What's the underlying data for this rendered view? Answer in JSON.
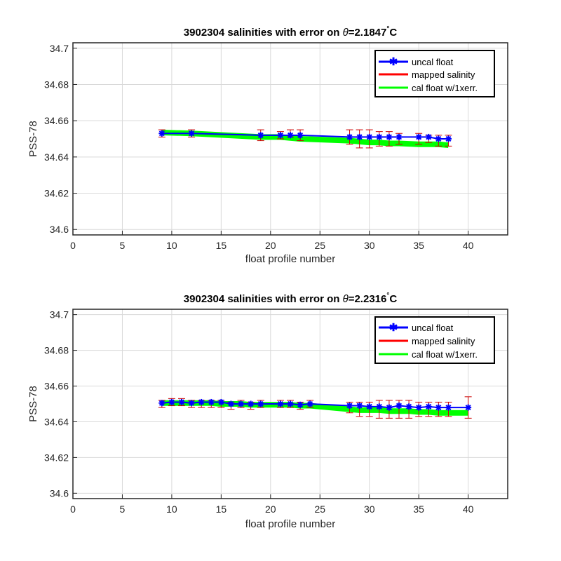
{
  "chart_data": [
    {
      "type": "line",
      "title_prefix": "3902304 salinities with error on ",
      "title_symbol": "θ",
      "title_value": "=2.1847",
      "title_degree": "°",
      "title_unit": "C",
      "xlabel": "float profile number",
      "ylabel": "PSS-78",
      "xlim": [
        0,
        44
      ],
      "ylim": [
        34.597,
        34.703
      ],
      "xticks": [
        "0",
        "5",
        "10",
        "15",
        "20",
        "25",
        "30",
        "35",
        "40"
      ],
      "yticks": [
        "34.6",
        "34.62",
        "34.64",
        "34.66",
        "34.68",
        "34.7"
      ],
      "grid": true,
      "legend_position": "top-right",
      "legend": [
        "uncal float",
        "mapped salinity",
        "cal float w/1xerr."
      ],
      "mapped_salinity": {
        "x": [
          9,
          12,
          19,
          21,
          22,
          23,
          28,
          29,
          30,
          31,
          32,
          33,
          35,
          36,
          37,
          38
        ],
        "y": [
          34.653,
          34.653,
          34.652,
          34.652,
          34.653,
          34.652,
          34.651,
          34.65,
          34.65,
          34.65,
          34.65,
          34.65,
          34.65,
          34.65,
          34.649,
          34.649
        ],
        "err": [
          0.002,
          0.002,
          0.003,
          0.002,
          0.002,
          0.003,
          0.004,
          0.005,
          0.005,
          0.004,
          0.004,
          0.003,
          0.003,
          0.002,
          0.003,
          0.003
        ]
      },
      "uncal_float": {
        "x": [
          9,
          12,
          19,
          21,
          22,
          23,
          28,
          29,
          30,
          31,
          32,
          33,
          35,
          36,
          37,
          38
        ],
        "y": [
          34.653,
          34.653,
          34.652,
          34.652,
          34.652,
          34.652,
          34.651,
          34.651,
          34.651,
          34.651,
          34.651,
          34.651,
          34.651,
          34.651,
          34.65,
          34.65
        ]
      },
      "cal_float": {
        "x": [
          9,
          12,
          19,
          21,
          22,
          23,
          28,
          29,
          30,
          31,
          32,
          33,
          35,
          36,
          37,
          38
        ],
        "y": [
          34.6535,
          34.653,
          34.651,
          34.651,
          34.6505,
          34.65,
          34.649,
          34.6485,
          34.648,
          34.648,
          34.6475,
          34.6475,
          34.647,
          34.647,
          34.647,
          34.6465
        ]
      }
    },
    {
      "type": "line",
      "title_prefix": "3902304 salinities with error on ",
      "title_symbol": "θ",
      "title_value": "=2.2316",
      "title_degree": "°",
      "title_unit": "C",
      "xlabel": "float profile number",
      "ylabel": "PSS-78",
      "xlim": [
        0,
        44
      ],
      "ylim": [
        34.597,
        34.703
      ],
      "xticks": [
        "0",
        "5",
        "10",
        "15",
        "20",
        "25",
        "30",
        "35",
        "40"
      ],
      "yticks": [
        "34.6",
        "34.62",
        "34.64",
        "34.66",
        "34.68",
        "34.7"
      ],
      "grid": true,
      "legend_position": "top-right",
      "legend": [
        "uncal float",
        "mapped salinity",
        "cal float w/1xerr."
      ],
      "mapped_salinity": {
        "x": [
          9,
          10,
          11,
          12,
          13,
          14,
          15,
          16,
          17,
          18,
          19,
          21,
          22,
          23,
          24,
          28,
          29,
          30,
          31,
          32,
          33,
          34,
          35,
          36,
          37,
          38,
          40
        ],
        "y": [
          34.65,
          34.651,
          34.651,
          34.65,
          34.65,
          34.65,
          34.65,
          34.649,
          34.65,
          34.649,
          34.65,
          34.65,
          34.65,
          34.649,
          34.65,
          34.648,
          34.647,
          34.647,
          34.647,
          34.647,
          34.647,
          34.647,
          34.647,
          34.647,
          34.647,
          34.647,
          34.648
        ],
        "err": [
          0.002,
          0.002,
          0.002,
          0.002,
          0.002,
          0.002,
          0.002,
          0.002,
          0.002,
          0.002,
          0.002,
          0.002,
          0.002,
          0.002,
          0.002,
          0.003,
          0.004,
          0.004,
          0.005,
          0.005,
          0.005,
          0.005,
          0.004,
          0.004,
          0.004,
          0.004,
          0.006
        ]
      },
      "uncal_float": {
        "x": [
          9,
          10,
          11,
          12,
          13,
          14,
          15,
          16,
          17,
          18,
          19,
          21,
          22,
          23,
          24,
          28,
          29,
          30,
          31,
          32,
          33,
          34,
          35,
          36,
          37,
          38,
          40
        ],
        "y": [
          34.6505,
          34.651,
          34.651,
          34.6505,
          34.651,
          34.651,
          34.651,
          34.65,
          34.65,
          34.65,
          34.65,
          34.65,
          34.65,
          34.6495,
          34.65,
          34.649,
          34.649,
          34.6485,
          34.6485,
          34.648,
          34.649,
          34.6485,
          34.648,
          34.6485,
          34.648,
          34.648,
          34.648
        ]
      },
      "cal_float": {
        "x": [
          9,
          10,
          11,
          12,
          13,
          14,
          15,
          16,
          17,
          18,
          19,
          21,
          22,
          23,
          24,
          28,
          29,
          30,
          31,
          32,
          33,
          34,
          35,
          36,
          37,
          38,
          40
        ],
        "y": [
          34.6505,
          34.6505,
          34.6505,
          34.6505,
          34.6505,
          34.6505,
          34.65,
          34.65,
          34.65,
          34.6495,
          34.6495,
          34.6495,
          34.6495,
          34.649,
          34.649,
          34.647,
          34.6465,
          34.6465,
          34.6465,
          34.646,
          34.646,
          34.646,
          34.6455,
          34.6455,
          34.645,
          34.645,
          34.645
        ]
      }
    }
  ],
  "colors": {
    "uncal_float": "#0000ff",
    "mapped_salinity": "#ff0000",
    "errbar": "#cc0000",
    "cal_float": "#00ff00",
    "grid": "#d9d9d9",
    "axis": "#262626"
  }
}
